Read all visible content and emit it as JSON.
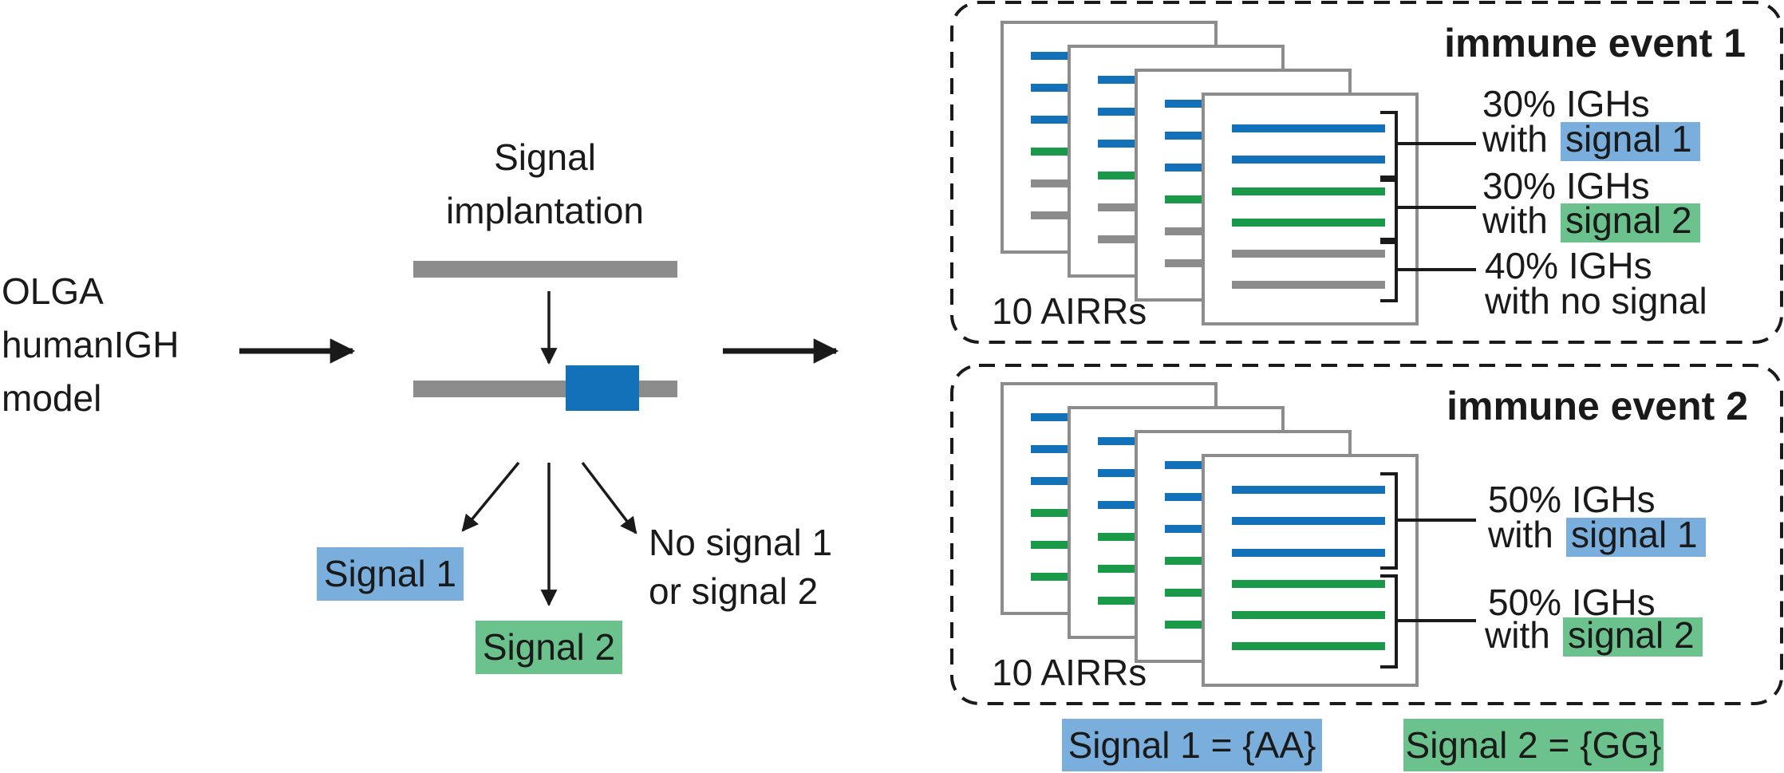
{
  "colors": {
    "blue": "#1271b9",
    "green": "#1a9a48",
    "gray": "#8c8c8c",
    "blue_fill": "#7aaedc",
    "green_fill": "#6cc28c",
    "box_blue": "#1271b9",
    "ink": "#1a1a1a"
  },
  "source": {
    "line1": "OLGA",
    "line2": "humanIGH",
    "line3": "model"
  },
  "implantation": {
    "title_line1": "Signal",
    "title_line2": "implantation",
    "outcomes": {
      "signal1": "Signal 1",
      "signal2": "Signal 2",
      "none_line1": "No signal 1",
      "none_line2": "or signal 2"
    }
  },
  "events": [
    {
      "title": "immune event 1",
      "count_label": "10 AIRRs",
      "front_lines": [
        "blue",
        "blue",
        "green",
        "green",
        "gray",
        "gray"
      ],
      "back_lines": [
        "blue",
        "blue",
        "blue",
        "green",
        "gray",
        "gray"
      ],
      "groups": [
        {
          "line1": "30% IGHs",
          "prefix": "with",
          "tag": "signal 1",
          "tag_color": "blue"
        },
        {
          "line1": "30% IGHs",
          "prefix": "with",
          "tag": "signal 2",
          "tag_color": "green"
        },
        {
          "line1": "40% IGHs",
          "prefix": "with no signal",
          "tag": "",
          "tag_color": ""
        }
      ]
    },
    {
      "title": "immune event 2",
      "count_label": "10 AIRRs",
      "front_lines": [
        "blue",
        "blue",
        "blue",
        "green",
        "green",
        "green"
      ],
      "back_lines": [
        "blue",
        "blue",
        "blue",
        "green",
        "green",
        "green"
      ],
      "groups": [
        {
          "line1": "50% IGHs",
          "prefix": "with",
          "tag": "signal 1",
          "tag_color": "blue"
        },
        {
          "line1": "50% IGHs",
          "prefix": "with",
          "tag": "signal 2",
          "tag_color": "green"
        }
      ]
    }
  ],
  "legend": {
    "signal1": "Signal 1 = {AA}",
    "signal2": "Signal 2 = {GG}"
  }
}
